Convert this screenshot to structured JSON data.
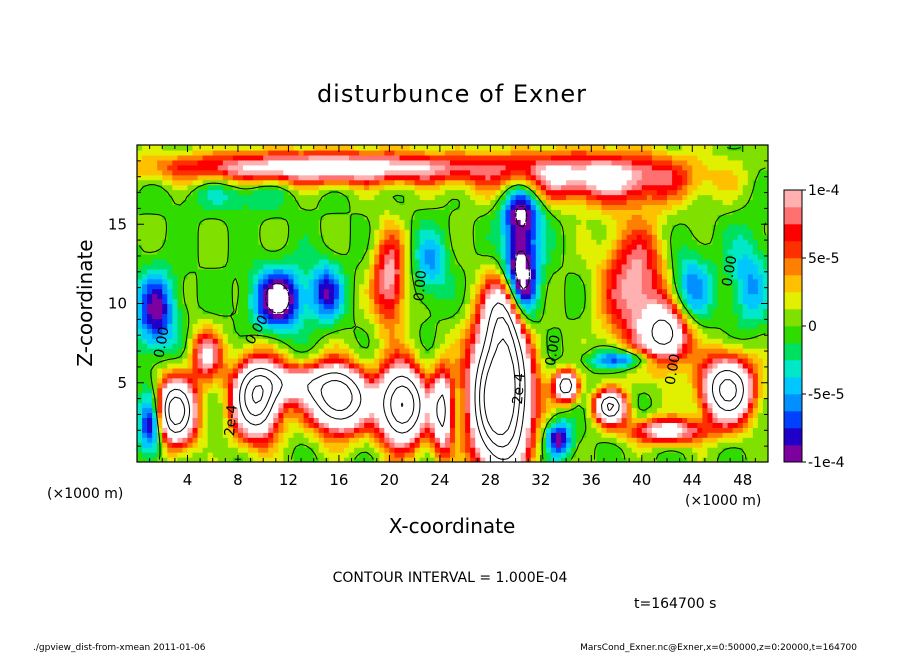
{
  "chart_data": {
    "type": "heatmap",
    "title": "disturbunce of Exner",
    "xlabel": "X-coordinate",
    "ylabel": "Z-coordinate",
    "x_unit": "(×1000 m)",
    "y_unit": "(×1000 m)",
    "xlim": [
      0,
      50
    ],
    "ylim": [
      0,
      20
    ],
    "x_ticks": [
      {
        "value": 4,
        "label": "4"
      },
      {
        "value": 8,
        "label": "8"
      },
      {
        "value": 12,
        "label": "12"
      },
      {
        "value": 16,
        "label": "16"
      },
      {
        "value": 20,
        "label": "20"
      },
      {
        "value": 24,
        "label": "24"
      },
      {
        "value": 28,
        "label": "28"
      },
      {
        "value": 32,
        "label": "32"
      },
      {
        "value": 36,
        "label": "36"
      },
      {
        "value": 40,
        "label": "40"
      },
      {
        "value": 44,
        "label": "44"
      },
      {
        "value": 48,
        "label": "48"
      }
    ],
    "y_ticks": [
      {
        "value": 5,
        "label": "5"
      },
      {
        "value": 10,
        "label": "10"
      },
      {
        "value": 15,
        "label": "15"
      }
    ],
    "colorbar": {
      "min": -0.0001,
      "max": 0.0001,
      "ticks": [
        {
          "value": 0.0001,
          "label": "1e-4"
        },
        {
          "value": 5e-05,
          "label": "5e-5"
        },
        {
          "value": 0,
          "label": "0"
        },
        {
          "value": -5e-05,
          "label": "-5e-5"
        },
        {
          "value": -0.0001,
          "label": "-1e-4"
        }
      ],
      "colors": [
        "#7d00a0",
        "#2000c8",
        "#0040ff",
        "#0090ff",
        "#00c8ff",
        "#00e8c8",
        "#00e060",
        "#30dc00",
        "#80e000",
        "#e0f000",
        "#ffc000",
        "#ff8000",
        "#ff3000",
        "#ff0000",
        "#ff7070",
        "#ffb0b0"
      ]
    },
    "annotations": [
      {
        "text": "0.00",
        "x": 2.3,
        "y": 7.5,
        "rotate": -80
      },
      {
        "text": "2e-4",
        "x": 7.8,
        "y": 2.6,
        "rotate": -85
      },
      {
        "text": "0.00",
        "x": 9.8,
        "y": 8.2,
        "rotate": -60
      },
      {
        "text": "0.00",
        "x": 22.8,
        "y": 11.1,
        "rotate": -85
      },
      {
        "text": "2e-4",
        "x": 30.6,
        "y": 4.6,
        "rotate": -85
      },
      {
        "text": "0.00",
        "x": 33.3,
        "y": 7.0,
        "rotate": -80
      },
      {
        "text": "0.00",
        "x": 42.8,
        "y": 5.8,
        "rotate": -80
      },
      {
        "text": "0.00",
        "x": 47.3,
        "y": 12.0,
        "rotate": -80
      }
    ],
    "contour_interval_text": "CONTOUR INTERVAL = 1.000E-04",
    "time_text": "t=164700 s"
  },
  "footer": {
    "left": "./gpview_dist-from-xmean 2011-01-06",
    "right": "MarsCond_Exner.nc@Exner,x=0:50000,z=0:20000,t=164700"
  }
}
